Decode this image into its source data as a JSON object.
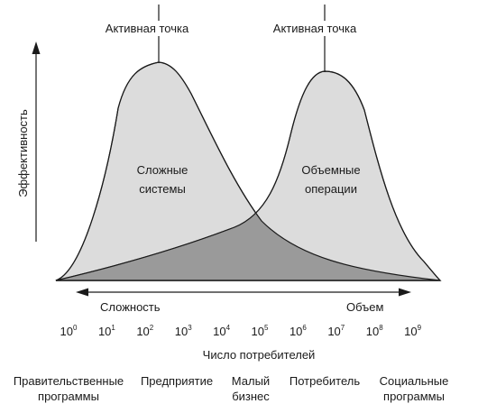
{
  "diagram": {
    "y_axis_label": "Эффективность",
    "active_point_left": "Активная точка",
    "active_point_right": "Активная точка",
    "region_left": [
      "Сложные",
      "системы"
    ],
    "region_right": [
      "Объемные",
      "операции"
    ],
    "arrow_left_label": "Сложность",
    "arrow_right_label": "Объем",
    "x_axis_title": "Число потребителей",
    "ticks": [
      {
        "base": "10",
        "exp": "0"
      },
      {
        "base": "10",
        "exp": "1"
      },
      {
        "base": "10",
        "exp": "2"
      },
      {
        "base": "10",
        "exp": "3"
      },
      {
        "base": "10",
        "exp": "4"
      },
      {
        "base": "10",
        "exp": "5"
      },
      {
        "base": "10",
        "exp": "6"
      },
      {
        "base": "10",
        "exp": "7"
      },
      {
        "base": "10",
        "exp": "8"
      },
      {
        "base": "10",
        "exp": "9"
      }
    ],
    "segments": [
      [
        "Правительственные",
        "программы"
      ],
      [
        "Предприятие"
      ],
      [
        "Малый",
        "бизнес"
      ],
      [
        "Потребитель"
      ],
      [
        "Социальные",
        "программы"
      ]
    ],
    "colors": {
      "curve_fill": "#dcdcdc",
      "overlap_fill": "#9a9a9a",
      "stroke": "#1a1a1a"
    }
  }
}
